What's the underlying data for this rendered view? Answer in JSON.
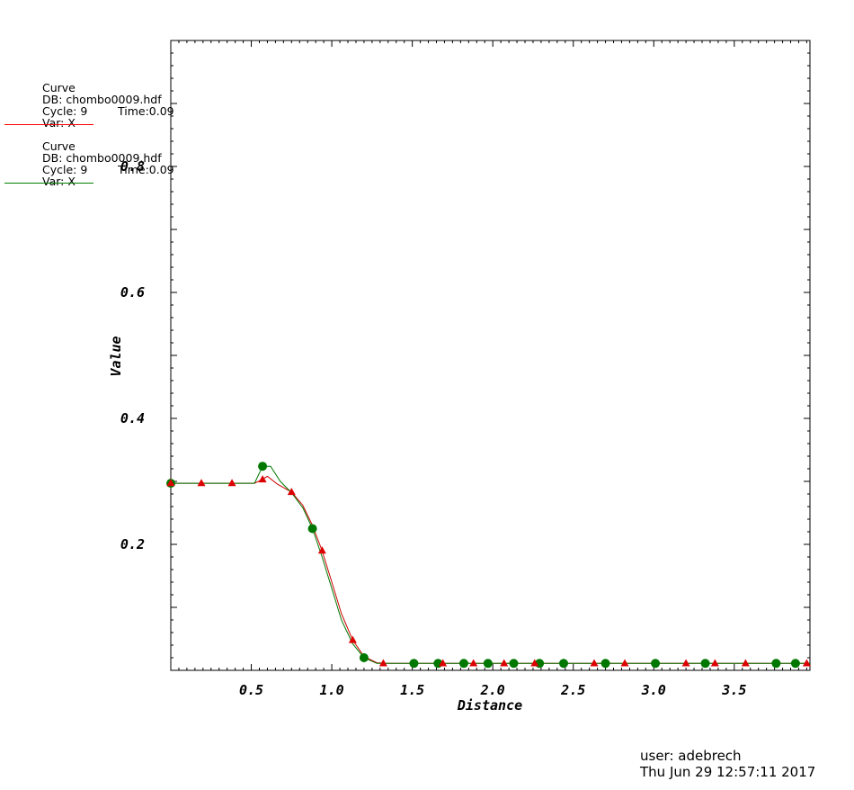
{
  "legend": [
    {
      "title": "Curve",
      "db": "DB: chombo0009.hdf",
      "cycle": "Cycle: 9",
      "time": "Time:0.09",
      "var": "Var: X",
      "color": "#ff0000"
    },
    {
      "title": "Curve",
      "db": "DB: chombo0009.hdf",
      "cycle": "Cycle: 9",
      "time": "Time:0.09",
      "var": "Var: X",
      "color": "#008000"
    }
  ],
  "footer": {
    "user": "user: adebrech",
    "datetime": "Thu Jun 29 12:57:11 2017"
  },
  "chart_data": {
    "type": "line",
    "xlabel": "Distance",
    "ylabel": "Value",
    "xlim": [
      0.0,
      3.97
    ],
    "ylim": [
      0.0,
      1.0
    ],
    "x_ticks": [
      0.5,
      1.0,
      1.5,
      2.0,
      2.5,
      3.0,
      3.5
    ],
    "x_tick_labels": [
      "0.5",
      "1.0",
      "1.5",
      "2.0",
      "2.5",
      "3.0",
      "3.5"
    ],
    "y_ticks": [
      0.2,
      0.4,
      0.6,
      0.8
    ],
    "y_tick_labels": [
      "0.2",
      "0.4",
      "0.6",
      "0.8"
    ],
    "series": [
      {
        "color": "#cc0000",
        "marker": "triangle",
        "line": [
          [
            0.0,
            0.297
          ],
          [
            0.52,
            0.297
          ],
          [
            0.56,
            0.302
          ],
          [
            0.6,
            0.308
          ],
          [
            0.66,
            0.296
          ],
          [
            0.75,
            0.283
          ],
          [
            0.82,
            0.262
          ],
          [
            0.88,
            0.23
          ],
          [
            0.94,
            0.19
          ],
          [
            1.0,
            0.14
          ],
          [
            1.06,
            0.09
          ],
          [
            1.13,
            0.048
          ],
          [
            1.2,
            0.022
          ],
          [
            1.28,
            0.012
          ],
          [
            1.35,
            0.011
          ],
          [
            3.97,
            0.011
          ]
        ],
        "marker_points": [
          [
            0.0,
            0.297
          ],
          [
            0.19,
            0.297
          ],
          [
            0.38,
            0.297
          ],
          [
            0.57,
            0.303
          ],
          [
            0.75,
            0.283
          ],
          [
            0.94,
            0.19
          ],
          [
            1.13,
            0.048
          ],
          [
            1.32,
            0.011
          ],
          [
            1.69,
            0.011
          ],
          [
            1.88,
            0.011
          ],
          [
            2.07,
            0.011
          ],
          [
            2.26,
            0.011
          ],
          [
            2.63,
            0.011
          ],
          [
            2.82,
            0.011
          ],
          [
            3.2,
            0.011
          ],
          [
            3.38,
            0.011
          ],
          [
            3.57,
            0.011
          ],
          [
            3.95,
            0.011
          ]
        ]
      },
      {
        "color": "#007700",
        "marker": "circle",
        "line": [
          [
            0.0,
            0.297
          ],
          [
            0.52,
            0.297
          ],
          [
            0.57,
            0.324
          ],
          [
            0.62,
            0.324
          ],
          [
            0.68,
            0.3
          ],
          [
            0.75,
            0.282
          ],
          [
            0.82,
            0.258
          ],
          [
            0.88,
            0.225
          ],
          [
            0.94,
            0.18
          ],
          [
            1.0,
            0.13
          ],
          [
            1.06,
            0.08
          ],
          [
            1.13,
            0.042
          ],
          [
            1.2,
            0.02
          ],
          [
            1.28,
            0.011
          ],
          [
            3.97,
            0.011
          ]
        ],
        "marker_points": [
          [
            0.0,
            0.297
          ],
          [
            0.57,
            0.324
          ],
          [
            0.88,
            0.225
          ],
          [
            1.2,
            0.02
          ],
          [
            1.51,
            0.011
          ],
          [
            1.66,
            0.011
          ],
          [
            1.82,
            0.011
          ],
          [
            1.97,
            0.011
          ],
          [
            2.13,
            0.011
          ],
          [
            2.29,
            0.011
          ],
          [
            2.44,
            0.011
          ],
          [
            2.7,
            0.011
          ],
          [
            3.01,
            0.011
          ],
          [
            3.32,
            0.011
          ],
          [
            3.76,
            0.011
          ],
          [
            3.88,
            0.011
          ]
        ]
      }
    ]
  }
}
